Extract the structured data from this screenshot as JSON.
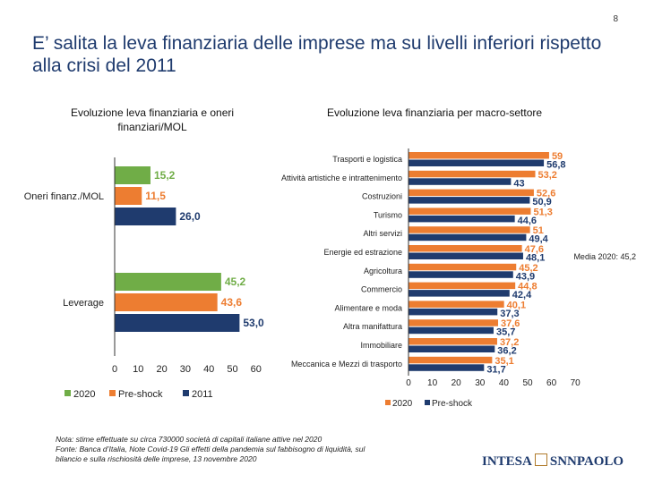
{
  "page_number": "8",
  "title": "E’ salita la leva finanziaria delle imprese ma su livelli inferiori rispetto alla crisi del 2011",
  "colors": {
    "y2020": "#70ad47",
    "preshock": "#ed7d31",
    "y2011": "#1f3b6e"
  },
  "chart_data": [
    {
      "type": "bar",
      "orientation": "horizontal",
      "title": "Evoluzione leva finanziaria e oneri finanziari/MOL",
      "categories": [
        "Oneri finanz./MOL",
        "Leverage"
      ],
      "series": [
        {
          "name": "2020",
          "values": [
            15.2,
            45.2
          ]
        },
        {
          "name": "Pre-shock",
          "values": [
            11.5,
            43.6
          ]
        },
        {
          "name": "2011",
          "values": [
            26.0,
            53.0
          ]
        }
      ],
      "value_labels": [
        [
          "15,2",
          "11,5",
          "26,0"
        ],
        [
          "45,2",
          "43,6",
          "53,0"
        ]
      ],
      "xlim": [
        0,
        60
      ],
      "xticks": [
        "0",
        "10",
        "20",
        "30",
        "40",
        "50",
        "60"
      ],
      "legend": [
        "2020",
        "Pre-shock",
        "2011"
      ]
    },
    {
      "type": "bar",
      "orientation": "horizontal",
      "title": "Evoluzione leva finanziaria per macro-settore",
      "categories": [
        "Trasporti e logistica",
        "Attività artistiche e intrattenimento",
        "Costruzioni",
        "Turismo",
        "Altri servizi",
        "Energie ed estrazione",
        "Agricoltura",
        "Commercio",
        "Alimentare e moda",
        "Altra manifattura",
        "Immobiliare",
        "Meccanica e Mezzi di trasporto"
      ],
      "series": [
        {
          "name": "2020",
          "values": [
            59,
            53.2,
            52.6,
            51.3,
            51,
            47.6,
            45.2,
            44.8,
            40.1,
            37.6,
            37.2,
            35.1
          ]
        },
        {
          "name": "Pre-shock",
          "values": [
            56.8,
            43,
            50.9,
            44.6,
            49.4,
            48.1,
            43.9,
            42.4,
            37.3,
            35.7,
            36.2,
            31.7
          ]
        }
      ],
      "labels_2020": [
        "59",
        "53,2",
        "52,6",
        "51,3",
        "51",
        "47,6",
        "45,2",
        "44,8",
        "40,1",
        "37,6",
        "37,2",
        "35,1"
      ],
      "labels_preshock": [
        "56,8",
        "43",
        "50,9",
        "44,6",
        "49,4",
        "48,1",
        "43,9",
        "42,4",
        "37,3",
        "35,7",
        "36,2",
        "31,7"
      ],
      "xlim": [
        0,
        70
      ],
      "xticks": [
        "0",
        "10",
        "20",
        "30",
        "40",
        "50",
        "60",
        "70"
      ],
      "annotation": "Media 2020: 45,2",
      "legend": [
        "2020",
        "Pre-shock"
      ]
    }
  ],
  "footnote": [
    "Nota: stime effettuate su circa 730000 società di capitali italiane attive nel 2020",
    "Fonte: Banca d’Italia, Note Covid-19 Gli effetti della pandemia sul fabbisogno di liquidità, sul",
    "bilancio e sulla rischiosità delle imprese, 13 novembre 2020"
  ],
  "logo": {
    "left": "INTESA",
    "right": "SNNPAOLO"
  }
}
